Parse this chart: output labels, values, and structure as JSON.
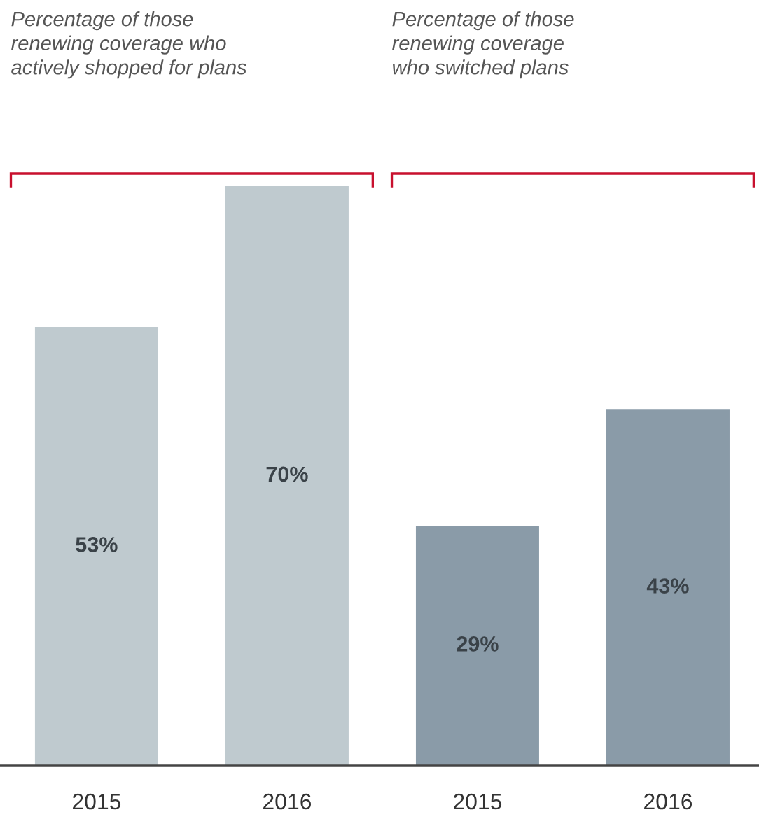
{
  "chart_data": {
    "type": "bar",
    "categories": [
      "2015",
      "2016",
      "2015",
      "2016"
    ],
    "values": [
      53,
      70,
      29,
      43
    ],
    "colors": [
      "#bfcacf",
      "#bfcacf",
      "#8a9ba8",
      "#8a9ba8"
    ],
    "value_labels": [
      "53%",
      "70%",
      "29%",
      "43%"
    ],
    "annotations": [
      "Percentage of those\nrenewing coverage who\nactively shopped for plans",
      "Percentage of those\nrenewing coverage\nwho switched plans"
    ],
    "grid": false,
    "legend": false
  }
}
